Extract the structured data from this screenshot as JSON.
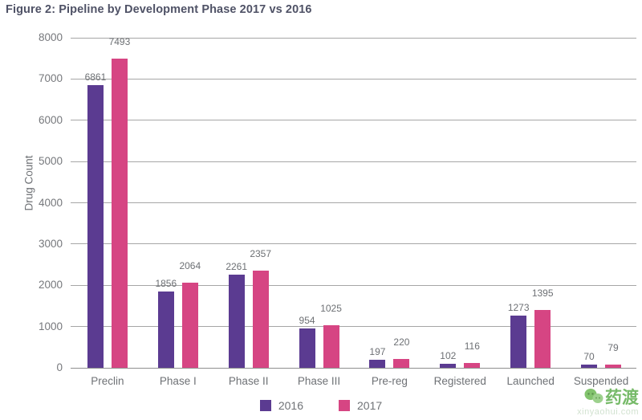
{
  "title": "Figure 2: Pipeline by Development Phase 2017 vs 2016",
  "chart_data": {
    "type": "bar",
    "categories": [
      "Preclin",
      "Phase I",
      "Phase II",
      "Phase III",
      "Pre-reg",
      "Registered",
      "Launched",
      "Suspended"
    ],
    "series": [
      {
        "name": "2016",
        "color": "#5b3b91",
        "values": [
          6861,
          1856,
          2261,
          954,
          197,
          102,
          1273,
          70
        ]
      },
      {
        "name": "2017",
        "color": "#d64583",
        "values": [
          7493,
          2064,
          2357,
          1025,
          220,
          116,
          1395,
          79
        ]
      }
    ],
    "title": "Figure 2: Pipeline by Development Phase 2017 vs 2016",
    "xlabel": "",
    "ylabel": "Drug Count",
    "ylim": [
      0,
      8000
    ],
    "ytick_step": 1000,
    "grid": "horizontal-only",
    "legend_position": "bottom-center",
    "value_labels": true
  },
  "legend": {
    "items": [
      {
        "label": "2016",
        "color": "#5b3b91"
      },
      {
        "label": "2017",
        "color": "#d64583"
      }
    ]
  },
  "watermark": {
    "brand": "药渡",
    "url_text": "xinyaohui.com",
    "logo": "green-leaves-logo",
    "color": "#5fae4e"
  },
  "colors": {
    "background": "#ffffff",
    "title_text": "#4f5266",
    "axis_text": "#76787c",
    "gridline": "#a0a0a0",
    "bar_2016": "#5b3b91",
    "bar_2017": "#d64583"
  }
}
